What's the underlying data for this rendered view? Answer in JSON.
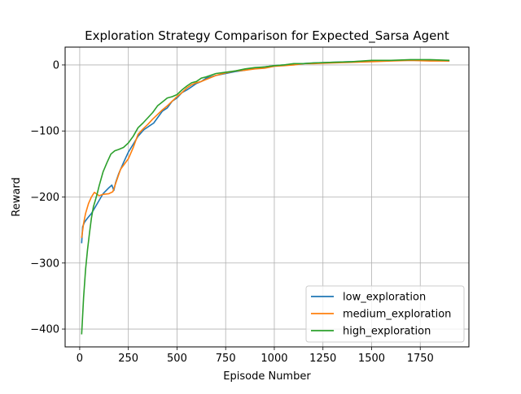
{
  "chart_data": {
    "type": "line",
    "title": "Exploration Strategy Comparison for Expected_Sarsa Agent",
    "xlabel": "Episode Number",
    "ylabel": "Reward",
    "xlim": [
      -75,
      2000
    ],
    "ylim": [
      -427,
      27
    ],
    "xticks": [
      0,
      250,
      500,
      750,
      1000,
      1250,
      1500,
      1750
    ],
    "yticks": [
      0,
      -100,
      -200,
      -300,
      -400
    ],
    "xtick_labels": [
      "0",
      "250",
      "500",
      "750",
      "1000",
      "1250",
      "1500",
      "1750"
    ],
    "ytick_labels": [
      "0",
      "−100",
      "−200",
      "−300",
      "−400"
    ],
    "grid": true,
    "legend_position": "lower-right",
    "series": [
      {
        "name": "low_exploration",
        "color": "#1f77b4",
        "points": [
          [
            10,
            -270
          ],
          [
            15,
            -245
          ],
          [
            25,
            -238
          ],
          [
            40,
            -232
          ],
          [
            60,
            -225
          ],
          [
            80,
            -215
          ],
          [
            100,
            -205
          ],
          [
            120,
            -195
          ],
          [
            150,
            -186
          ],
          [
            165,
            -182
          ],
          [
            175,
            -190
          ],
          [
            185,
            -178
          ],
          [
            200,
            -165
          ],
          [
            225,
            -148
          ],
          [
            250,
            -132
          ],
          [
            275,
            -120
          ],
          [
            300,
            -108
          ],
          [
            330,
            -98
          ],
          [
            360,
            -92
          ],
          [
            380,
            -88
          ],
          [
            400,
            -80
          ],
          [
            425,
            -70
          ],
          [
            450,
            -65
          ],
          [
            475,
            -55
          ],
          [
            500,
            -50
          ],
          [
            525,
            -42
          ],
          [
            550,
            -38
          ],
          [
            575,
            -33
          ],
          [
            600,
            -28
          ],
          [
            625,
            -25
          ],
          [
            650,
            -20
          ],
          [
            700,
            -16
          ],
          [
            750,
            -13
          ],
          [
            800,
            -10
          ],
          [
            850,
            -8
          ],
          [
            900,
            -5
          ],
          [
            950,
            -3
          ],
          [
            1000,
            -1
          ],
          [
            1050,
            0
          ],
          [
            1100,
            1
          ],
          [
            1150,
            2
          ],
          [
            1200,
            3
          ],
          [
            1300,
            4
          ],
          [
            1400,
            5
          ],
          [
            1500,
            6
          ],
          [
            1600,
            7
          ],
          [
            1700,
            7
          ],
          [
            1800,
            7
          ],
          [
            1900,
            6
          ]
        ]
      },
      {
        "name": "medium_exploration",
        "color": "#ff7f0e",
        "points": [
          [
            10,
            -262
          ],
          [
            20,
            -240
          ],
          [
            30,
            -225
          ],
          [
            45,
            -210
          ],
          [
            60,
            -200
          ],
          [
            75,
            -193
          ],
          [
            85,
            -195
          ],
          [
            100,
            -198
          ],
          [
            120,
            -196
          ],
          [
            150,
            -195
          ],
          [
            170,
            -192
          ],
          [
            190,
            -175
          ],
          [
            210,
            -158
          ],
          [
            225,
            -152
          ],
          [
            250,
            -142
          ],
          [
            275,
            -125
          ],
          [
            300,
            -105
          ],
          [
            325,
            -97
          ],
          [
            350,
            -90
          ],
          [
            375,
            -82
          ],
          [
            400,
            -75
          ],
          [
            425,
            -68
          ],
          [
            450,
            -62
          ],
          [
            475,
            -55
          ],
          [
            500,
            -48
          ],
          [
            525,
            -42
          ],
          [
            550,
            -35
          ],
          [
            575,
            -30
          ],
          [
            600,
            -27
          ],
          [
            625,
            -25
          ],
          [
            650,
            -22
          ],
          [
            700,
            -16
          ],
          [
            750,
            -12
          ],
          [
            800,
            -9
          ],
          [
            850,
            -8
          ],
          [
            900,
            -6
          ],
          [
            950,
            -5
          ],
          [
            1000,
            -2
          ],
          [
            1050,
            -1
          ],
          [
            1100,
            0
          ],
          [
            1150,
            2
          ],
          [
            1200,
            2
          ],
          [
            1300,
            3
          ],
          [
            1400,
            4
          ],
          [
            1500,
            5
          ],
          [
            1600,
            6
          ],
          [
            1700,
            7
          ],
          [
            1800,
            6
          ],
          [
            1900,
            6
          ]
        ]
      },
      {
        "name": "high_exploration",
        "color": "#2ca02c",
        "points": [
          [
            10,
            -408
          ],
          [
            15,
            -380
          ],
          [
            20,
            -352
          ],
          [
            30,
            -310
          ],
          [
            40,
            -280
          ],
          [
            50,
            -255
          ],
          [
            60,
            -232
          ],
          [
            70,
            -215
          ],
          [
            80,
            -205
          ],
          [
            90,
            -195
          ],
          [
            100,
            -183
          ],
          [
            120,
            -162
          ],
          [
            140,
            -148
          ],
          [
            160,
            -135
          ],
          [
            180,
            -130
          ],
          [
            200,
            -128
          ],
          [
            225,
            -125
          ],
          [
            250,
            -118
          ],
          [
            275,
            -108
          ],
          [
            300,
            -95
          ],
          [
            325,
            -88
          ],
          [
            350,
            -80
          ],
          [
            375,
            -72
          ],
          [
            400,
            -62
          ],
          [
            425,
            -56
          ],
          [
            450,
            -50
          ],
          [
            475,
            -48
          ],
          [
            500,
            -45
          ],
          [
            525,
            -38
          ],
          [
            550,
            -32
          ],
          [
            575,
            -27
          ],
          [
            600,
            -25
          ],
          [
            625,
            -20
          ],
          [
            650,
            -18
          ],
          [
            700,
            -13
          ],
          [
            750,
            -11
          ],
          [
            800,
            -9
          ],
          [
            850,
            -6
          ],
          [
            900,
            -4
          ],
          [
            950,
            -3
          ],
          [
            1000,
            -1
          ],
          [
            1050,
            0
          ],
          [
            1100,
            2
          ],
          [
            1150,
            2
          ],
          [
            1200,
            3
          ],
          [
            1300,
            4
          ],
          [
            1400,
            5
          ],
          [
            1500,
            7
          ],
          [
            1600,
            7
          ],
          [
            1700,
            8
          ],
          [
            1800,
            8
          ],
          [
            1900,
            7
          ]
        ]
      }
    ]
  }
}
